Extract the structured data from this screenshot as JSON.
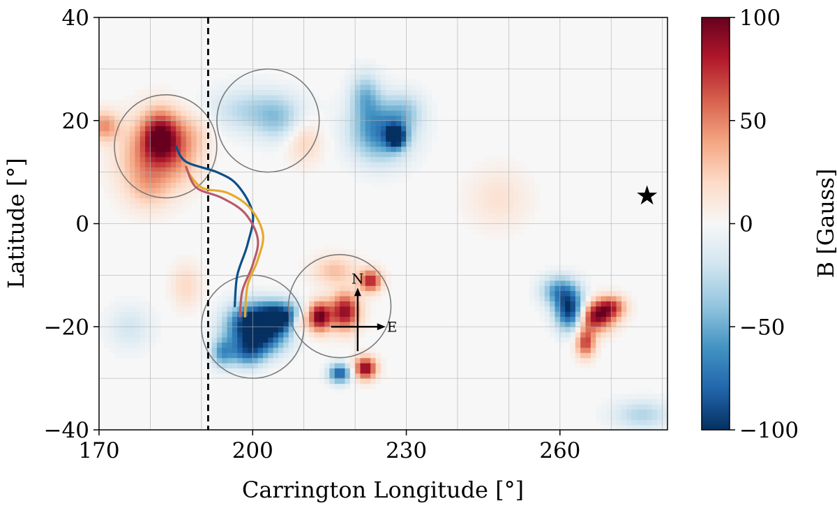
{
  "chart_data": {
    "type": "heatmap",
    "title": "",
    "xlabel": "Carrington Longitude [°]",
    "ylabel": "Latitude [°]",
    "xlim": [
      170,
      281
    ],
    "ylim": [
      -40,
      40
    ],
    "xticks": [
      170,
      200,
      230,
      260
    ],
    "xtick_labels": [
      "170",
      "200",
      "230",
      "260"
    ],
    "yticks": [
      -40,
      -20,
      0,
      20,
      40
    ],
    "ytick_labels": [
      "−40",
      "−20",
      "0",
      "20",
      "40"
    ],
    "grid": true,
    "grid_step": [
      10,
      10
    ],
    "colorbar": {
      "label": "B [Gauss]",
      "range": [
        -100,
        100
      ],
      "ticks": [
        -100,
        -50,
        0,
        50,
        100
      ],
      "tick_labels": [
        "−100",
        "−50",
        "0",
        "50",
        "100"
      ],
      "colors": [
        "#053061",
        "#2166ac",
        "#4393c3",
        "#92c5de",
        "#d1e5f0",
        "#f7f7f7",
        "#fddbc7",
        "#f4a582",
        "#d6604d",
        "#b2182b",
        "#67001f"
      ]
    },
    "field_blobs": [
      {
        "lon": 182,
        "lat": 17,
        "b": 85,
        "sigma": [
          2.5,
          3.5
        ]
      },
      {
        "lon": 179,
        "lat": 13,
        "b": 40,
        "sigma": [
          4,
          5
        ]
      },
      {
        "lon": 186,
        "lat": 13,
        "b": 30,
        "sigma": [
          3,
          4
        ]
      },
      {
        "lon": 171,
        "lat": 19,
        "b": 45,
        "sigma": [
          2,
          2
        ]
      },
      {
        "lon": 188,
        "lat": 18,
        "b": 20,
        "sigma": [
          3,
          3
        ]
      },
      {
        "lon": 180,
        "lat": 7,
        "b": 20,
        "sigma": [
          3,
          3
        ]
      },
      {
        "lon": 200,
        "lat": 22,
        "b": -30,
        "sigma": [
          6,
          3
        ]
      },
      {
        "lon": 205,
        "lat": 20,
        "b": -25,
        "sigma": [
          3,
          3
        ]
      },
      {
        "lon": 210,
        "lat": 16,
        "b": 22,
        "sigma": [
          2.5,
          3
        ]
      },
      {
        "lon": 225,
        "lat": 18,
        "b": -70,
        "sigma": [
          4,
          4
        ]
      },
      {
        "lon": 228,
        "lat": 17,
        "b": -100,
        "sigma": [
          1.3,
          1.5
        ]
      },
      {
        "lon": 222,
        "lat": 25,
        "b": -40,
        "sigma": [
          2,
          3
        ]
      },
      {
        "lon": 230,
        "lat": 22,
        "b": -25,
        "sigma": [
          2.5,
          2.5
        ]
      },
      {
        "lon": 202,
        "lat": -19,
        "b": -100,
        "sigma": [
          3,
          2.5
        ]
      },
      {
        "lon": 206,
        "lat": -18,
        "b": -80,
        "sigma": [
          2.5,
          2
        ]
      },
      {
        "lon": 198,
        "lat": -20,
        "b": -60,
        "sigma": [
          3,
          3
        ]
      },
      {
        "lon": 199,
        "lat": -25,
        "b": -60,
        "sigma": [
          2.5,
          2
        ]
      },
      {
        "lon": 194,
        "lat": -25,
        "b": -50,
        "sigma": [
          1.5,
          2
        ]
      },
      {
        "lon": 203,
        "lat": -23,
        "b": -40,
        "sigma": [
          3,
          2
        ]
      },
      {
        "lon": 213,
        "lat": -18,
        "b": 100,
        "sigma": [
          1.6,
          2
        ]
      },
      {
        "lon": 218,
        "lat": -17,
        "b": 90,
        "sigma": [
          2,
          2.5
        ]
      },
      {
        "lon": 223,
        "lat": -11,
        "b": 80,
        "sigma": [
          1.5,
          1.5
        ]
      },
      {
        "lon": 216,
        "lat": -9,
        "b": 30,
        "sigma": [
          3,
          2
        ]
      },
      {
        "lon": 222,
        "lat": -28,
        "b": 95,
        "sigma": [
          1.5,
          1.5
        ]
      },
      {
        "lon": 217,
        "lat": -29,
        "b": -85,
        "sigma": [
          1.5,
          1.3
        ]
      },
      {
        "lon": 209,
        "lat": -19,
        "b": 40,
        "sigma": [
          1.2,
          1.5
        ]
      },
      {
        "lon": 262,
        "lat": -17,
        "b": -100,
        "sigma": [
          2,
          2.5
        ]
      },
      {
        "lon": 260,
        "lat": -13,
        "b": -60,
        "sigma": [
          2.5,
          2
        ]
      },
      {
        "lon": 267,
        "lat": -18,
        "b": 90,
        "sigma": [
          2.5,
          2
        ]
      },
      {
        "lon": 265,
        "lat": -23,
        "b": 70,
        "sigma": [
          1.3,
          2
        ]
      },
      {
        "lon": 270,
        "lat": -16,
        "b": 60,
        "sigma": [
          2,
          1.5
        ]
      },
      {
        "lon": 276,
        "lat": -37,
        "b": -30,
        "sigma": [
          4,
          2
        ]
      },
      {
        "lon": 187,
        "lat": -12,
        "b": 20,
        "sigma": [
          2,
          3
        ]
      },
      {
        "lon": 176,
        "lat": -20,
        "b": -18,
        "sigma": [
          3,
          3
        ]
      },
      {
        "lon": 248,
        "lat": 5,
        "b": 15,
        "sigma": [
          4,
          4
        ]
      }
    ],
    "circles": [
      {
        "lon": 183,
        "lat": 15,
        "r": 10
      },
      {
        "lon": 203,
        "lat": 20,
        "r": 10
      },
      {
        "lon": 200,
        "lat": -20,
        "r": 10
      },
      {
        "lon": 217,
        "lat": -16,
        "r": 10
      }
    ],
    "dashed_line_lon": 191.3,
    "traces": [
      {
        "name": "blue",
        "color": "#0b4f8a",
        "points": [
          [
            185,
            15
          ],
          [
            187,
            12
          ],
          [
            193,
            10
          ],
          [
            197,
            7.5
          ],
          [
            200,
            2
          ],
          [
            199,
            -4
          ],
          [
            197,
            -10
          ],
          [
            196.5,
            -16
          ]
        ]
      },
      {
        "name": "gold",
        "color": "#e6a92a",
        "points": [
          [
            187,
            10.5
          ],
          [
            190,
            7
          ],
          [
            195,
            6
          ],
          [
            199.5,
            3
          ],
          [
            202,
            -2
          ],
          [
            201,
            -7
          ],
          [
            199,
            -12
          ],
          [
            198.5,
            -18
          ]
        ]
      },
      {
        "name": "rose",
        "color": "#b95a6a",
        "points": [
          [
            187,
            11
          ],
          [
            189,
            7
          ],
          [
            194,
            5
          ],
          [
            198.5,
            2
          ],
          [
            201,
            -3
          ],
          [
            200,
            -8
          ],
          [
            198,
            -13
          ],
          [
            197.5,
            -18
          ]
        ]
      }
    ],
    "compass": {
      "lon": 220.5,
      "lat": -20,
      "north_label": "N",
      "east_label": "E"
    },
    "star_marker": {
      "lon": 277,
      "lat": 5.5,
      "symbol": "★"
    }
  }
}
